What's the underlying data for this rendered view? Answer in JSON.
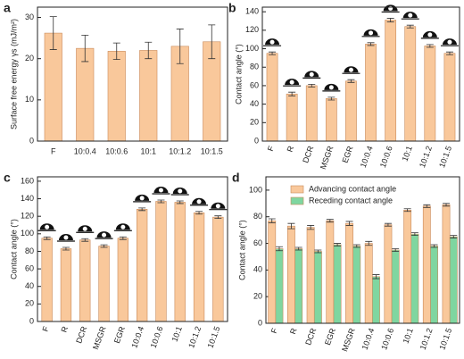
{
  "chart_data": [
    {
      "type": "bar",
      "panel_label": "a",
      "ylabel": "Surface free energy γs (mJ/m²)",
      "categories": [
        "F",
        "10:0.4",
        "10:0.6",
        "10:1",
        "10:1.2",
        "10:1.5"
      ],
      "values": [
        26.2,
        22.5,
        21.8,
        22,
        23,
        24.1
      ],
      "errors": [
        4,
        3.2,
        2,
        2,
        4.2,
        4.1
      ],
      "color": "#f9c89b",
      "ylim": [
        0,
        32.5
      ],
      "yticks": [
        0,
        10,
        20,
        30
      ]
    },
    {
      "type": "bar",
      "panel_label": "b",
      "ylabel": "Contact angle (°)",
      "categories": [
        "F",
        "R",
        "DCR",
        "MSGR",
        "EGR",
        "10:0.4",
        "10:0.6",
        "10:1",
        "10:1.2",
        "10:1.5"
      ],
      "values": [
        95,
        51,
        60,
        46,
        65,
        105,
        131,
        124,
        103,
        95
      ],
      "errors": [
        1.5,
        2,
        1.5,
        1.5,
        1.5,
        1.5,
        2,
        1.5,
        1.5,
        1.5
      ],
      "color": "#f9c89b",
      "ylim": [
        0,
        145
      ],
      "yticks": [
        0,
        20,
        40,
        60,
        80,
        100,
        120,
        140
      ]
    },
    {
      "type": "bar",
      "panel_label": "c",
      "ylabel": "Contact angle (°)",
      "categories": [
        "F",
        "R",
        "DCR",
        "MSGR",
        "EGR",
        "10:0.4",
        "10:0.6",
        "10:1",
        "10:1.2",
        "10:1.5"
      ],
      "values": [
        95,
        83,
        93,
        86,
        95,
        128,
        137,
        136,
        124,
        119
      ],
      "errors": [
        1.5,
        1.5,
        1.5,
        1.5,
        1.5,
        1.5,
        1.5,
        1.5,
        1.5,
        1.5
      ],
      "color": "#f9c89b",
      "ylim": [
        0,
        165
      ],
      "yticks": [
        0,
        20,
        40,
        60,
        80,
        100,
        120,
        140,
        160
      ]
    },
    {
      "type": "bar",
      "panel_label": "d",
      "ylabel": "Contact angle (°)",
      "categories": [
        "F",
        "R",
        "DCR",
        "EGR",
        "MSGR",
        "10:0.4",
        "10:0.6",
        "10:1",
        "10:1.2",
        "10:1.5"
      ],
      "series": [
        {
          "name": "Advancing contact angle",
          "color": "#f9c89b",
          "values": [
            77,
            73,
            72,
            77,
            75,
            60,
            74,
            85,
            88,
            89
          ],
          "errors": [
            1.5,
            2,
            1.5,
            1,
            1.5,
            1.5,
            1,
            1,
            1,
            1
          ]
        },
        {
          "name": "Receding contact angle",
          "color": "#7fd6a0",
          "values": [
            56,
            56,
            54,
            59,
            58,
            35,
            55,
            67,
            58,
            65
          ],
          "errors": [
            1.5,
            1,
            1,
            1,
            1,
            1.5,
            1,
            1,
            1,
            1
          ]
        }
      ],
      "ylim": [
        0,
        110
      ],
      "yticks": [
        0,
        20,
        40,
        60,
        80,
        100
      ]
    }
  ]
}
